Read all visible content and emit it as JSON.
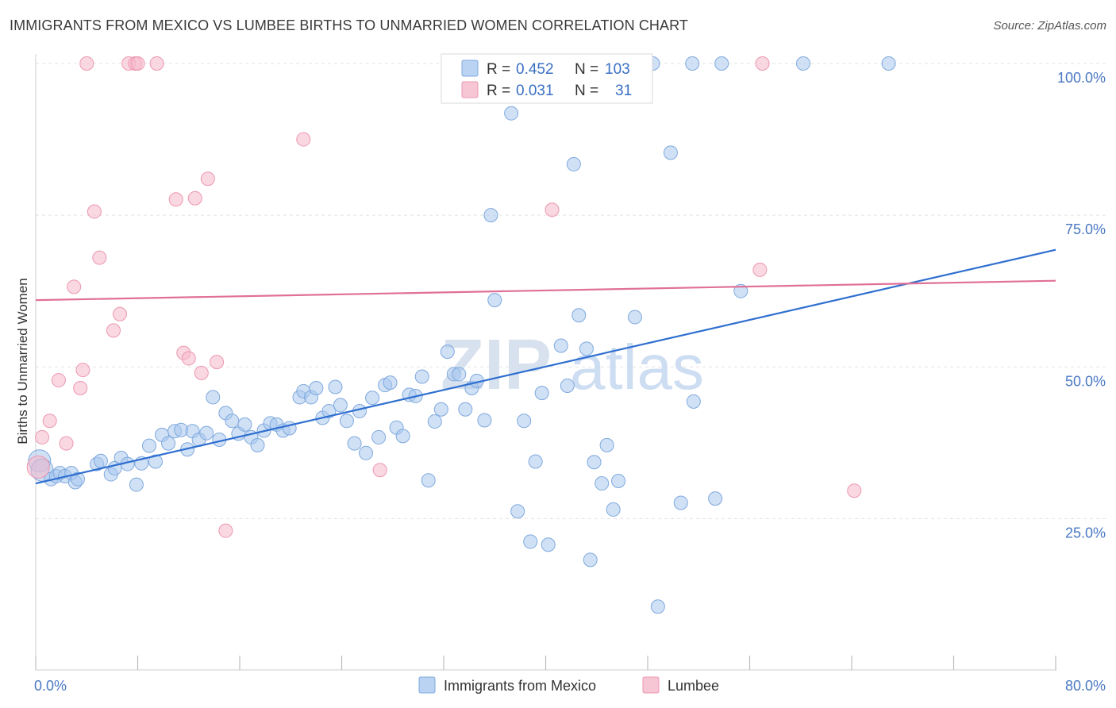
{
  "header": {
    "title": "IMMIGRANTS FROM MEXICO VS LUMBEE BIRTHS TO UNMARRIED WOMEN CORRELATION CHART",
    "source": "Source: ZipAtlas.com"
  },
  "watermark": {
    "zip": "ZIP",
    "atlas": "atlas"
  },
  "legend_top": {
    "rows": [
      {
        "r_label": "R =",
        "r_value": "0.452",
        "n_label": "N =",
        "n_value": "103",
        "color": "#a9c8ef"
      },
      {
        "r_label": "R =",
        "r_value": "0.031",
        "n_label": "N =",
        "n_value": "31",
        "color": "#f5b8ca"
      }
    ]
  },
  "legend_bottom": {
    "items": [
      {
        "label": "Immigrants from Mexico",
        "color": "#a9c8ef"
      },
      {
        "label": "Lumbee",
        "color": "#f5b8ca"
      }
    ]
  },
  "chart_data": {
    "type": "scatter",
    "xlabel": "",
    "ylabel": "Births to Unmarried Women",
    "xlim": [
      0,
      80
    ],
    "ylim": [
      0,
      105
    ],
    "x_tick_labels": [
      "0.0%",
      "80.0%"
    ],
    "y_tick_labels": [
      "100.0%",
      "75.0%",
      "50.0%",
      "25.0%"
    ],
    "y_ticks": [
      100,
      75,
      50,
      25
    ],
    "grid": true,
    "legend_position": "top-center",
    "series": [
      {
        "name": "Immigrants from Mexico",
        "color": "#a9c8ef",
        "stroke": "#7fa9dd",
        "trend": {
          "x": [
            0,
            80
          ],
          "y": [
            30.8,
            69.3
          ],
          "color": "#2f6fd0"
        },
        "points": [
          [
            0.3,
            34.5
          ],
          [
            0.5,
            33.0
          ],
          [
            1.2,
            31.5
          ],
          [
            1.6,
            32.0
          ],
          [
            1.9,
            32.5
          ],
          [
            2.3,
            32.0
          ],
          [
            2.8,
            32.5
          ],
          [
            3.1,
            31.0
          ],
          [
            3.3,
            31.5
          ],
          [
            4.8,
            34.0
          ],
          [
            5.1,
            34.5
          ],
          [
            5.9,
            32.3
          ],
          [
            6.2,
            33.3
          ],
          [
            6.7,
            35.0
          ],
          [
            7.2,
            34.0
          ],
          [
            7.9,
            30.6
          ],
          [
            8.3,
            34.1
          ],
          [
            8.9,
            37.0
          ],
          [
            9.4,
            34.4
          ],
          [
            9.9,
            38.8
          ],
          [
            10.4,
            37.4
          ],
          [
            10.9,
            39.4
          ],
          [
            11.4,
            39.6
          ],
          [
            11.9,
            36.4
          ],
          [
            12.3,
            39.4
          ],
          [
            12.8,
            38.0
          ],
          [
            13.4,
            39.1
          ],
          [
            13.9,
            45.0
          ],
          [
            14.4,
            38.0
          ],
          [
            14.9,
            42.4
          ],
          [
            15.4,
            41.1
          ],
          [
            15.9,
            39.0
          ],
          [
            16.4,
            40.5
          ],
          [
            16.9,
            38.4
          ],
          [
            17.4,
            37.1
          ],
          [
            17.9,
            39.5
          ],
          [
            18.4,
            40.7
          ],
          [
            18.9,
            40.5
          ],
          [
            19.4,
            39.5
          ],
          [
            19.9,
            39.9
          ],
          [
            20.7,
            45.0
          ],
          [
            21.0,
            46.0
          ],
          [
            21.6,
            45.0
          ],
          [
            22.0,
            46.5
          ],
          [
            22.5,
            41.6
          ],
          [
            23.0,
            42.7
          ],
          [
            23.5,
            46.7
          ],
          [
            23.9,
            43.7
          ],
          [
            24.4,
            41.1
          ],
          [
            25.0,
            37.4
          ],
          [
            25.4,
            42.7
          ],
          [
            25.9,
            35.8
          ],
          [
            26.4,
            44.9
          ],
          [
            26.9,
            38.4
          ],
          [
            27.4,
            47.0
          ],
          [
            27.8,
            47.4
          ],
          [
            28.3,
            40.0
          ],
          [
            28.8,
            38.6
          ],
          [
            29.3,
            45.4
          ],
          [
            29.8,
            45.2
          ],
          [
            30.3,
            48.4
          ],
          [
            30.8,
            31.3
          ],
          [
            31.3,
            41.0
          ],
          [
            31.8,
            43.0
          ],
          [
            32.3,
            52.5
          ],
          [
            32.8,
            48.8
          ],
          [
            33.2,
            48.8
          ],
          [
            33.7,
            43.0
          ],
          [
            34.2,
            46.5
          ],
          [
            34.6,
            47.7
          ],
          [
            35.2,
            41.2
          ],
          [
            36.0,
            61.0
          ],
          [
            37.3,
            91.8
          ],
          [
            37.8,
            26.2
          ],
          [
            38.3,
            41.1
          ],
          [
            38.8,
            21.2
          ],
          [
            39.2,
            34.4
          ],
          [
            39.7,
            45.7
          ],
          [
            40.2,
            20.7
          ],
          [
            41.2,
            53.5
          ],
          [
            41.7,
            46.9
          ],
          [
            42.2,
            83.4
          ],
          [
            42.6,
            58.5
          ],
          [
            43.2,
            53.0
          ],
          [
            43.5,
            18.2
          ],
          [
            43.8,
            34.3
          ],
          [
            44.4,
            30.8
          ],
          [
            44.8,
            37.1
          ],
          [
            45.3,
            26.5
          ],
          [
            45.7,
            31.2
          ],
          [
            47.0,
            58.2
          ],
          [
            48.8,
            10.5
          ],
          [
            49.8,
            85.3
          ],
          [
            50.6,
            27.6
          ],
          [
            51.6,
            44.3
          ],
          [
            53.3,
            28.3
          ],
          [
            55.3,
            62.5
          ],
          [
            60.2,
            100.0
          ],
          [
            53.8,
            100.0
          ],
          [
            66.9,
            100.0
          ],
          [
            35.7,
            75.0
          ],
          [
            48.4,
            100.0
          ],
          [
            51.5,
            100.0
          ]
        ]
      },
      {
        "name": "Lumbee",
        "color": "#f5b8ca",
        "stroke": "#ec97b0",
        "trend": {
          "x": [
            0,
            80
          ],
          "y": [
            61.0,
            64.2
          ],
          "color": "#e07097"
        },
        "points": [
          [
            0.5,
            38.4
          ],
          [
            1.1,
            41.1
          ],
          [
            1.8,
            47.8
          ],
          [
            2.4,
            37.4
          ],
          [
            3.0,
            63.2
          ],
          [
            3.5,
            46.5
          ],
          [
            3.7,
            49.5
          ],
          [
            4.6,
            75.6
          ],
          [
            5.0,
            68.0
          ],
          [
            6.1,
            56.0
          ],
          [
            6.6,
            58.7
          ],
          [
            7.3,
            100.0
          ],
          [
            7.8,
            100.0
          ],
          [
            8.0,
            100.0
          ],
          [
            9.5,
            100.0
          ],
          [
            11.0,
            77.6
          ],
          [
            11.6,
            52.3
          ],
          [
            12.0,
            51.4
          ],
          [
            12.5,
            77.8
          ],
          [
            13.0,
            49.0
          ],
          [
            13.5,
            81.0
          ],
          [
            14.2,
            50.8
          ],
          [
            14.9,
            23.0
          ],
          [
            21.0,
            87.5
          ],
          [
            27.0,
            33.0
          ],
          [
            40.5,
            75.9
          ],
          [
            56.8,
            66.0
          ],
          [
            57.0,
            100.0
          ],
          [
            64.2,
            29.6
          ],
          [
            0.2,
            33.5
          ],
          [
            4.0,
            100.0
          ]
        ]
      }
    ]
  }
}
